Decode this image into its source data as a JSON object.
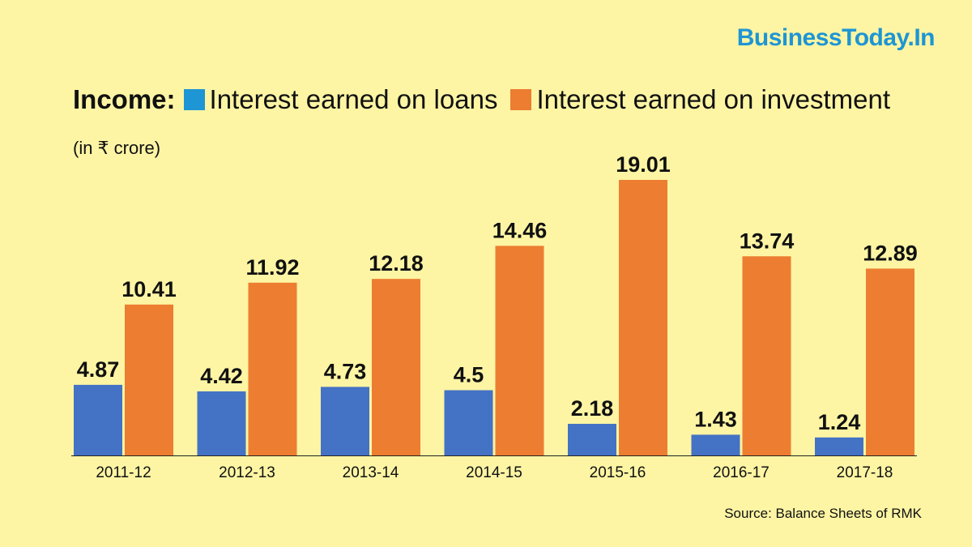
{
  "brand": "BusinessToday.In",
  "legend": {
    "lead": "Income:",
    "loans_label": "Interest earned on loans",
    "investment_label": "Interest earned on investment"
  },
  "unit_label": "(in ₹ crore)",
  "source": "Source: Balance Sheets of RMK",
  "colors": {
    "background": "#fdf5a4",
    "loans": "#4472c4",
    "loans_legend": "#1e95d4",
    "investment": "#ed7d31",
    "brand": "#1e95d4"
  },
  "chart_data": {
    "type": "bar",
    "categories": [
      "2011-12",
      "2012-13",
      "2013-14",
      "2014-15",
      "2015-16",
      "2016-17",
      "2017-18"
    ],
    "series": [
      {
        "name": "Interest earned on loans",
        "values": [
          4.87,
          4.42,
          4.73,
          4.5,
          2.18,
          1.43,
          1.24
        ]
      },
      {
        "name": "Interest earned on investment",
        "values": [
          10.41,
          11.92,
          12.18,
          14.46,
          19.01,
          13.74,
          12.89
        ]
      }
    ],
    "grid": false,
    "legend_position": "top-left"
  }
}
